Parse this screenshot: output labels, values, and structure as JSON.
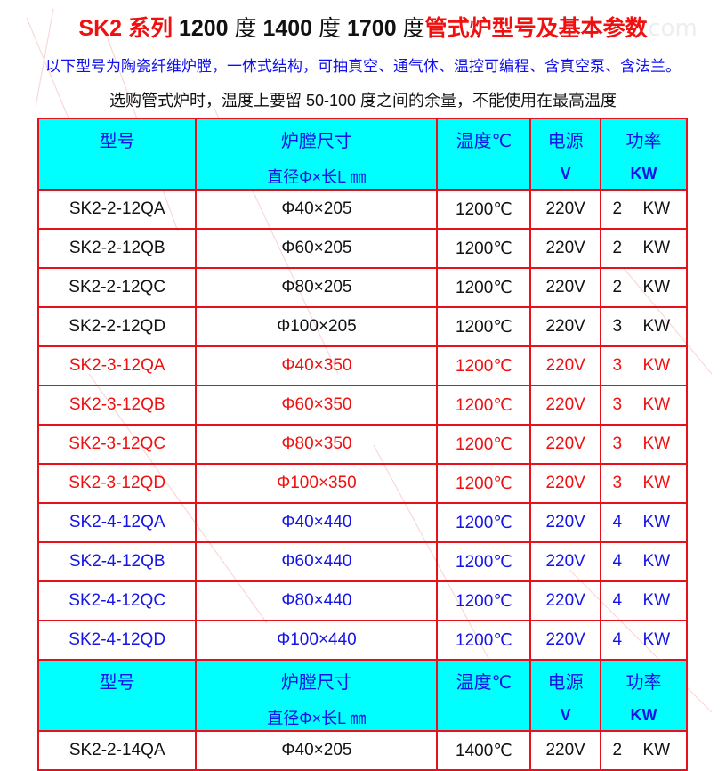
{
  "title": {
    "part1": "SK2 系列 ",
    "t1": "1200",
    "deg1": " 度 ",
    "t2": "1400",
    "deg2": " 度 ",
    "t3": "1700",
    "deg3": " 度",
    "part2": "管式炉型号及基本参数"
  },
  "subtitle": "以下型号为陶瓷纤维炉膛，一体式结构，可抽真空、通气体、温控可编程、含真空泵、含法兰。",
  "note": "选购管式炉时，温度上要留 50-100 度之间的余量，不能使用在最高温度",
  "header": {
    "model": "型号",
    "chamber": "炉膛尺寸",
    "chamber_unit": "直径Φ×长L ㎜",
    "temp": "温度℃",
    "power_supply": "电源",
    "power_supply_unit": "V",
    "power": "功率",
    "power_unit": "KW"
  },
  "colors": {
    "border": "#e8101a",
    "header_bg": "#00ffff",
    "blue": "#1414e6",
    "red": "#f01010"
  },
  "rows": [
    {
      "model": "SK2-2-12QA",
      "size": "Φ40×205",
      "temp": "1200℃",
      "volt": "220V",
      "kw": "2",
      "unit": "KW",
      "color": "black"
    },
    {
      "model": "SK2-2-12QB",
      "size": "Φ60×205",
      "temp": "1200℃",
      "volt": "220V",
      "kw": "2",
      "unit": "KW",
      "color": "black"
    },
    {
      "model": "SK2-2-12QC",
      "size": "Φ80×205",
      "temp": "1200℃",
      "volt": "220V",
      "kw": "2",
      "unit": "KW",
      "color": "black"
    },
    {
      "model": "SK2-2-12QD",
      "size": "Φ100×205",
      "temp": "1200℃",
      "volt": "220V",
      "kw": "3",
      "unit": "KW",
      "color": "black"
    },
    {
      "model": "SK2-3-12QA",
      "size": "Φ40×350",
      "temp": "1200℃",
      "volt": "220V",
      "kw": "3",
      "unit": "KW",
      "color": "red"
    },
    {
      "model": "SK2-3-12QB",
      "size": "Φ60×350",
      "temp": "1200℃",
      "volt": "220V",
      "kw": "3",
      "unit": "KW",
      "color": "red"
    },
    {
      "model": "SK2-3-12QC",
      "size": "Φ80×350",
      "temp": "1200℃",
      "volt": "220V",
      "kw": "3",
      "unit": "KW",
      "color": "red"
    },
    {
      "model": "SK2-3-12QD",
      "size": "Φ100×350",
      "temp": "1200℃",
      "volt": "220V",
      "kw": "3",
      "unit": "KW",
      "color": "red"
    },
    {
      "model": "SK2-4-12QA",
      "size": "Φ40×440",
      "temp": "1200℃",
      "volt": "220V",
      "kw": "4",
      "unit": "KW",
      "color": "blue"
    },
    {
      "model": "SK2-4-12QB",
      "size": "Φ60×440",
      "temp": "1200℃",
      "volt": "220V",
      "kw": "4",
      "unit": "KW",
      "color": "blue"
    },
    {
      "model": "SK2-4-12QC",
      "size": "Φ80×440",
      "temp": "1200℃",
      "volt": "220V",
      "kw": "4",
      "unit": "KW",
      "color": "blue"
    },
    {
      "model": "SK2-4-12QD",
      "size": "Φ100×440",
      "temp": "1200℃",
      "volt": "220V",
      "kw": "4",
      "unit": "KW",
      "color": "blue"
    }
  ],
  "rows2": [
    {
      "model": "SK2-2-14QA",
      "size": "Φ40×205",
      "temp": "1400℃",
      "volt": "220V",
      "kw": "2",
      "unit": "KW",
      "color": "black"
    }
  ]
}
